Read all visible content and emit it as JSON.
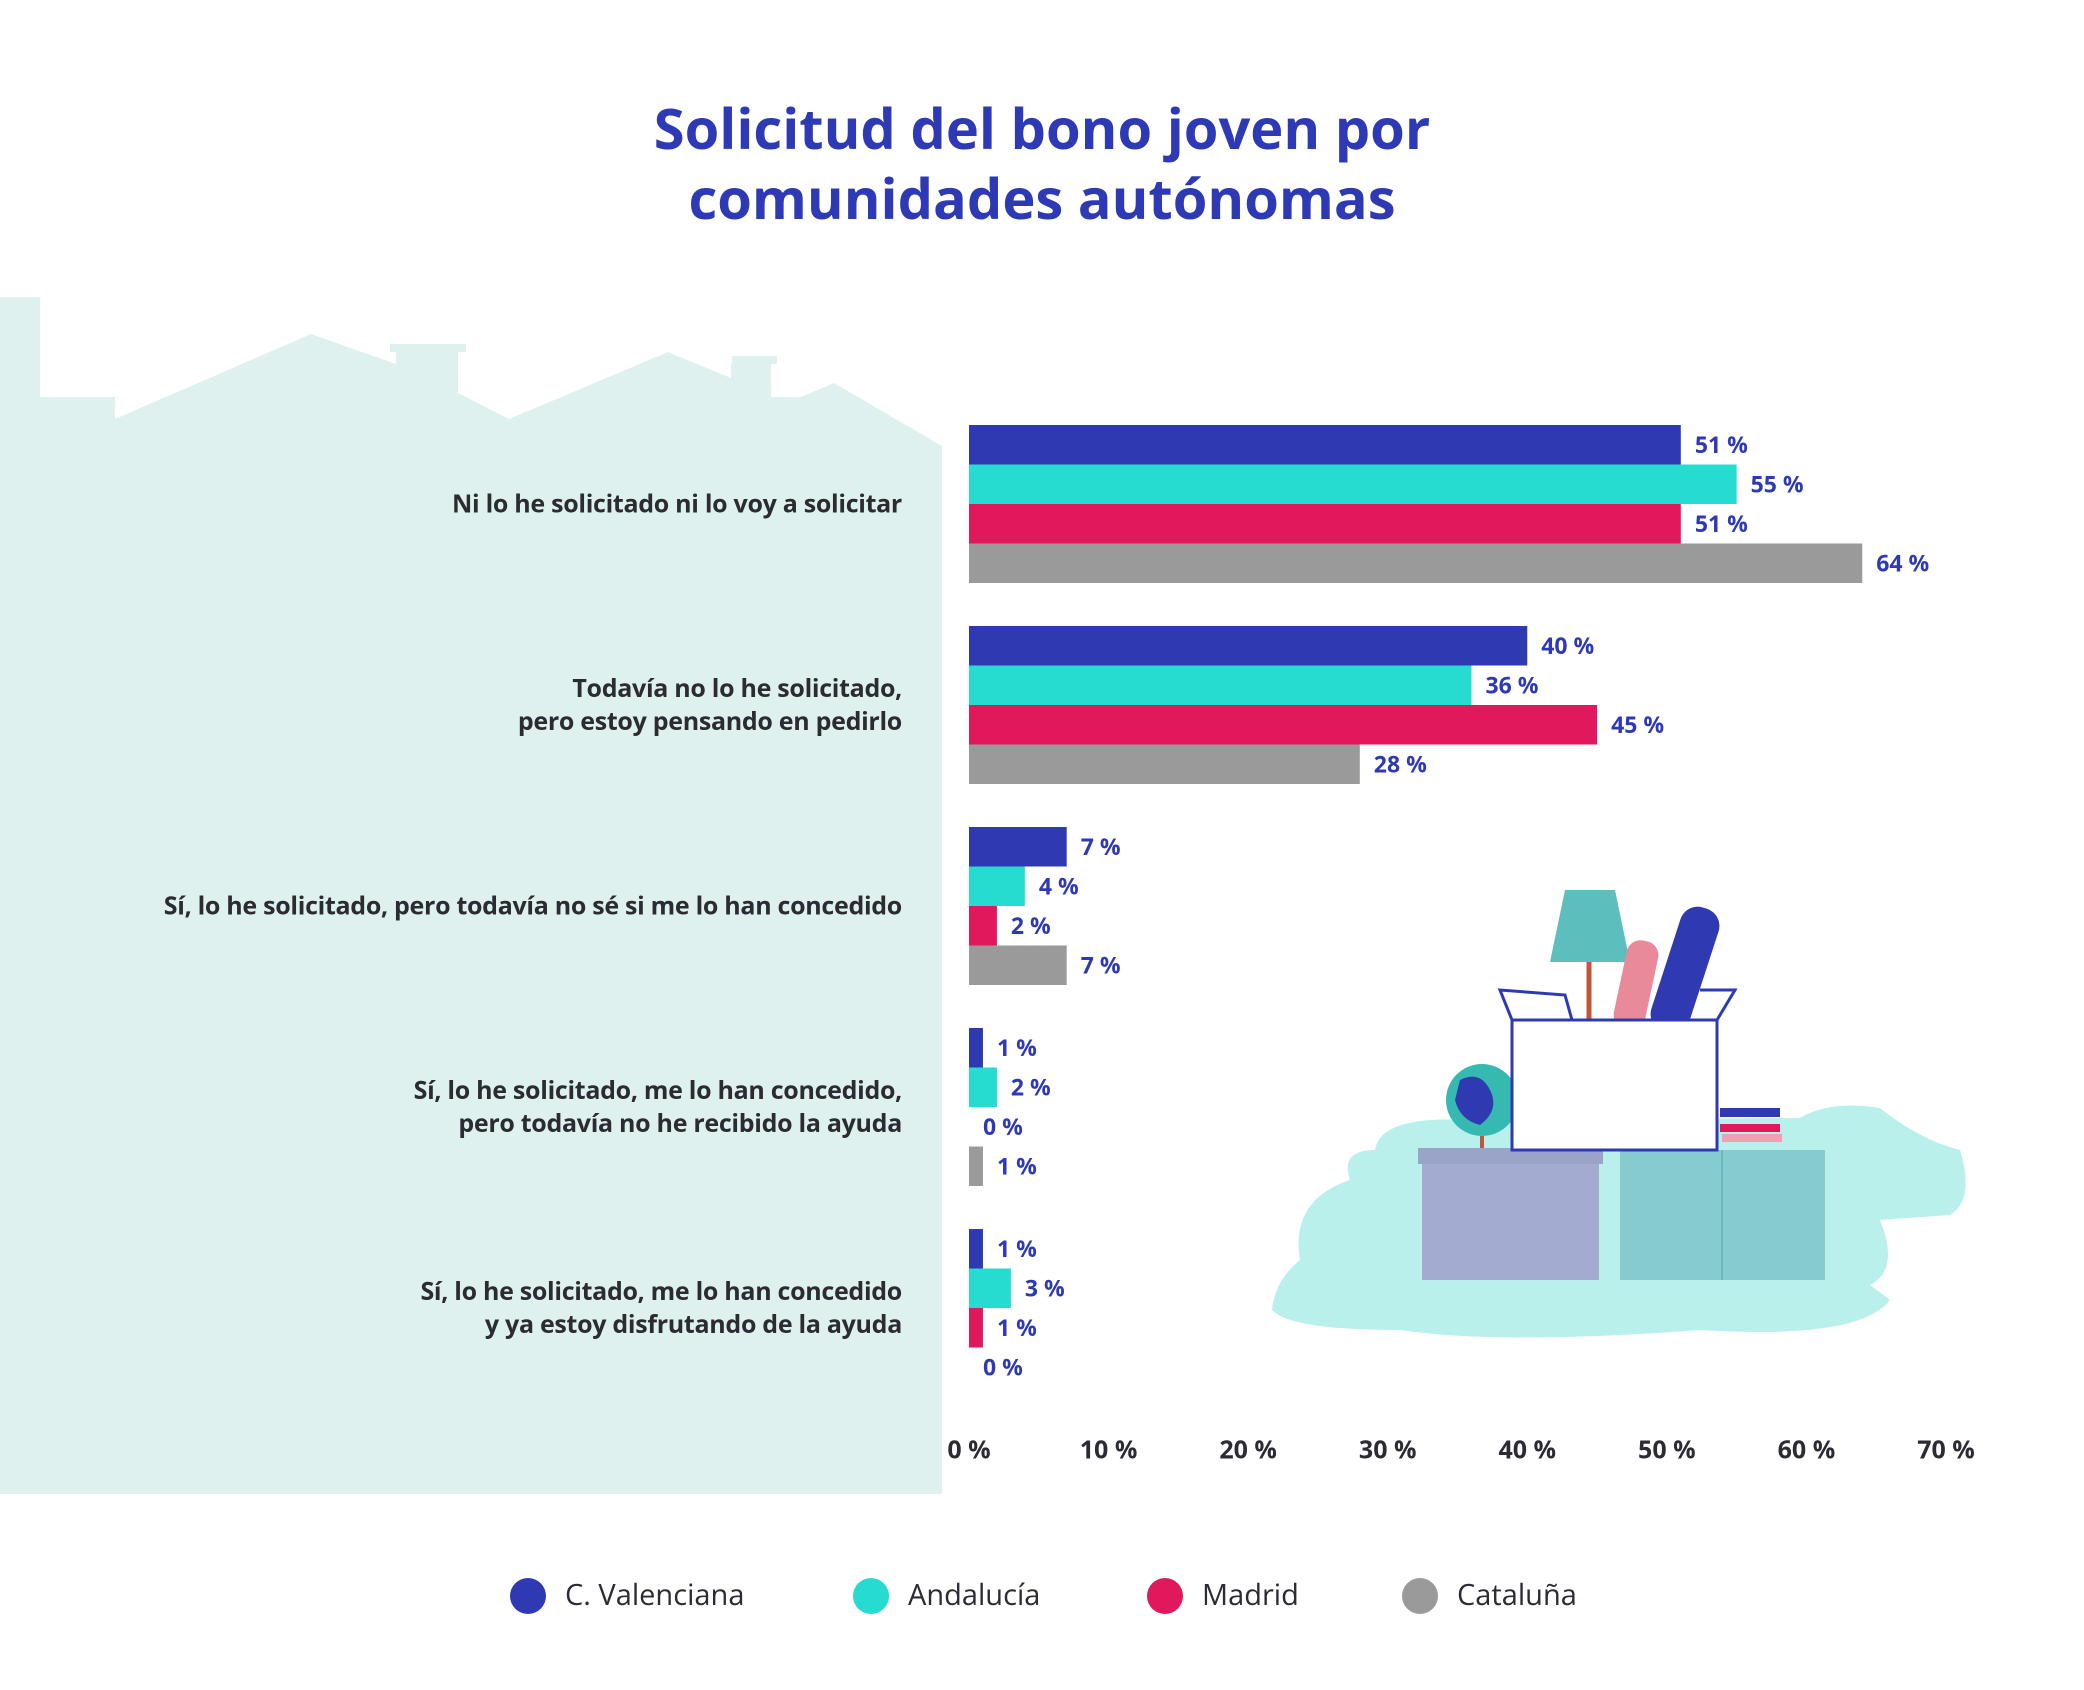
{
  "chart_data": {
    "type": "bar",
    "orientation": "horizontal",
    "title": "Solicitud del bono joven por\ncomunidades autónomas",
    "categories": [
      "Ni lo he solicitado ni lo voy a solicitar",
      "Todavía no lo he solicitado,\npero estoy pensando en pedirlo",
      "Sí, lo he solicitado, pero todavía no sé si me lo han concedido",
      "Sí, lo he solicitado, me lo han concedido,\npero todavía no he recibido la ayuda",
      "Sí, lo he solicitado, me lo han concedido\ny ya estoy disfrutando de la ayuda"
    ],
    "series": [
      {
        "name": "C. Valenciana",
        "color": "#2f3ab2",
        "values": [
          51,
          40,
          7,
          1,
          1
        ],
        "value_labels": [
          "51 %",
          "40 %",
          "7 %",
          "1 %",
          "1 %"
        ]
      },
      {
        "name": "Andalucía",
        "color": "#26dbd0",
        "values": [
          55,
          36,
          4,
          2,
          3
        ],
        "value_labels": [
          "55 %",
          "36 %",
          "4 %",
          "2 %",
          "3 %"
        ]
      },
      {
        "name": "Madrid",
        "color": "#e0195c",
        "values": [
          51,
          45,
          2,
          0,
          1
        ],
        "value_labels": [
          "51 %",
          "45 %",
          "2 %",
          "0 %",
          "1 %"
        ]
      },
      {
        "name": "Cataluña",
        "color": "#9a9a9a",
        "values": [
          64,
          28,
          7,
          1,
          0
        ],
        "value_labels": [
          "64 %",
          "28 %",
          "7 %",
          "1 %",
          "0 %"
        ]
      }
    ],
    "xlim": [
      0,
      70
    ],
    "xticks": [
      {
        "value": 0,
        "label": "0 %"
      },
      {
        "value": 10,
        "label": "10 %"
      },
      {
        "value": 20,
        "label": "20 %"
      },
      {
        "value": 30,
        "label": "30 %"
      },
      {
        "value": 40,
        "label": "40 %"
      },
      {
        "value": 50,
        "label": "50 %"
      },
      {
        "value": 60,
        "label": "60 %"
      },
      {
        "value": 70,
        "label": "70 %"
      }
    ],
    "grid": false,
    "legend": "bottom"
  }
}
